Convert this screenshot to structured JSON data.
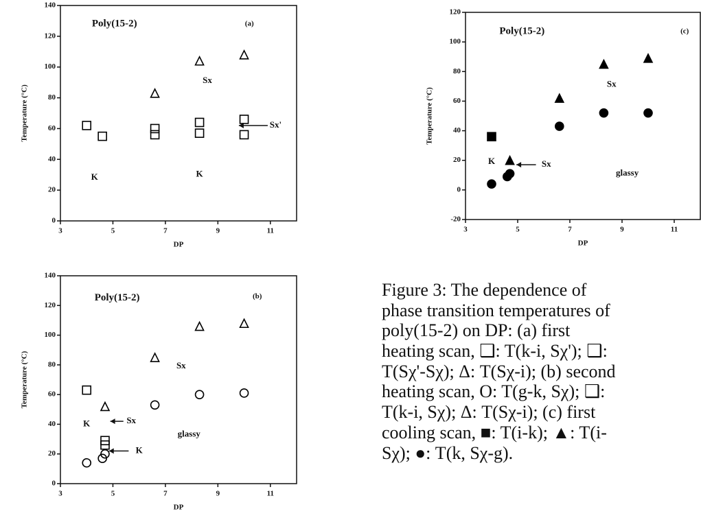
{
  "chart_data": [
    {
      "type": "scatter",
      "title": "Poly(15-2)",
      "panel": "(a)",
      "xlabel": "DP",
      "ylabel": "Temperature (°C)",
      "xlim": [
        3,
        12
      ],
      "ylim": [
        0,
        140
      ],
      "xticks": [
        3,
        5,
        7,
        9,
        11
      ],
      "yticks": [
        0,
        20,
        40,
        60,
        80,
        100,
        120,
        140
      ],
      "series": [
        {
          "marker": "square",
          "filled": false,
          "color": "#000000",
          "x": [
            4,
            4.6,
            6.6,
            8.3,
            10
          ],
          "values": [
            62,
            55,
            60,
            64,
            66
          ]
        },
        {
          "marker": "square",
          "filled": false,
          "color": "#000000",
          "x": [
            6.6,
            8.3,
            10
          ],
          "values": [
            56,
            57,
            56
          ]
        },
        {
          "marker": "triangle",
          "filled": false,
          "color": "#000000",
          "x": [
            6.6,
            8.3,
            10
          ],
          "values": [
            83,
            104,
            108
          ]
        }
      ],
      "annotations": [
        "Sx",
        "K",
        "K",
        "Sx'"
      ]
    },
    {
      "type": "scatter",
      "title": "Poly(15-2)",
      "panel": "(b)",
      "xlabel": "DP",
      "ylabel": "Temperature (°C)",
      "xlim": [
        3,
        12
      ],
      "ylim": [
        0,
        140
      ],
      "xticks": [
        3,
        5,
        7,
        9,
        11
      ],
      "yticks": [
        0,
        20,
        40,
        60,
        80,
        100,
        120,
        140
      ],
      "series": [
        {
          "marker": "circle",
          "filled": false,
          "color": "#000000",
          "x": [
            4,
            4.6,
            4.7,
            6.6,
            8.3,
            10
          ],
          "values": [
            14,
            17,
            20,
            53,
            60,
            61
          ]
        },
        {
          "marker": "square",
          "filled": false,
          "color": "#000000",
          "x": [
            4,
            4.7,
            4.7
          ],
          "values": [
            63,
            29,
            26
          ]
        },
        {
          "marker": "triangle",
          "filled": false,
          "color": "#000000",
          "x": [
            4.7,
            6.6,
            8.3,
            10
          ],
          "values": [
            52,
            85,
            106,
            108
          ]
        }
      ],
      "annotations": [
        "Sx",
        "K",
        "Sx",
        "K",
        "glassy"
      ]
    },
    {
      "type": "scatter",
      "title": "Poly(15-2)",
      "panel": "(c)",
      "xlabel": "DP",
      "ylabel": "Temperature (°C)",
      "xlim": [
        3,
        12
      ],
      "ylim": [
        -20,
        120
      ],
      "xticks": [
        3,
        5,
        7,
        9,
        11
      ],
      "yticks": [
        -20,
        0,
        20,
        40,
        60,
        80,
        100,
        120
      ],
      "series": [
        {
          "marker": "square",
          "filled": true,
          "color": "#000000",
          "x": [
            4
          ],
          "values": [
            36
          ]
        },
        {
          "marker": "triangle",
          "filled": true,
          "color": "#000000",
          "x": [
            4.7,
            6.6,
            8.3,
            10
          ],
          "values": [
            20,
            62,
            85,
            89
          ]
        },
        {
          "marker": "circle",
          "filled": true,
          "color": "#000000",
          "x": [
            4,
            4.6,
            4.7,
            6.6,
            8.3,
            10
          ],
          "values": [
            4,
            9,
            11,
            43,
            52,
            52
          ]
        }
      ],
      "annotations": [
        "Sx",
        "K",
        "Sx",
        "glassy"
      ]
    }
  ],
  "caption": [
    "Figure 3:     The dependence of",
    "phase transition temperatures of",
    "poly(15-2) on DP: (a) first",
    "heating scan, ❑: T(k-i, Sχ'); ❑:",
    "T(Sχ'-Sχ); Δ: T(Sχ-i); (b) second",
    "heating scan, O: T(g-k, Sχ); ❑:",
    "T(k-i, Sχ); Δ: T(Sχ-i); (c) first",
    "cooling scan, ■: T(i-k); ▲: T(i-",
    "Sχ); ●: T(k, Sχ-g)."
  ]
}
